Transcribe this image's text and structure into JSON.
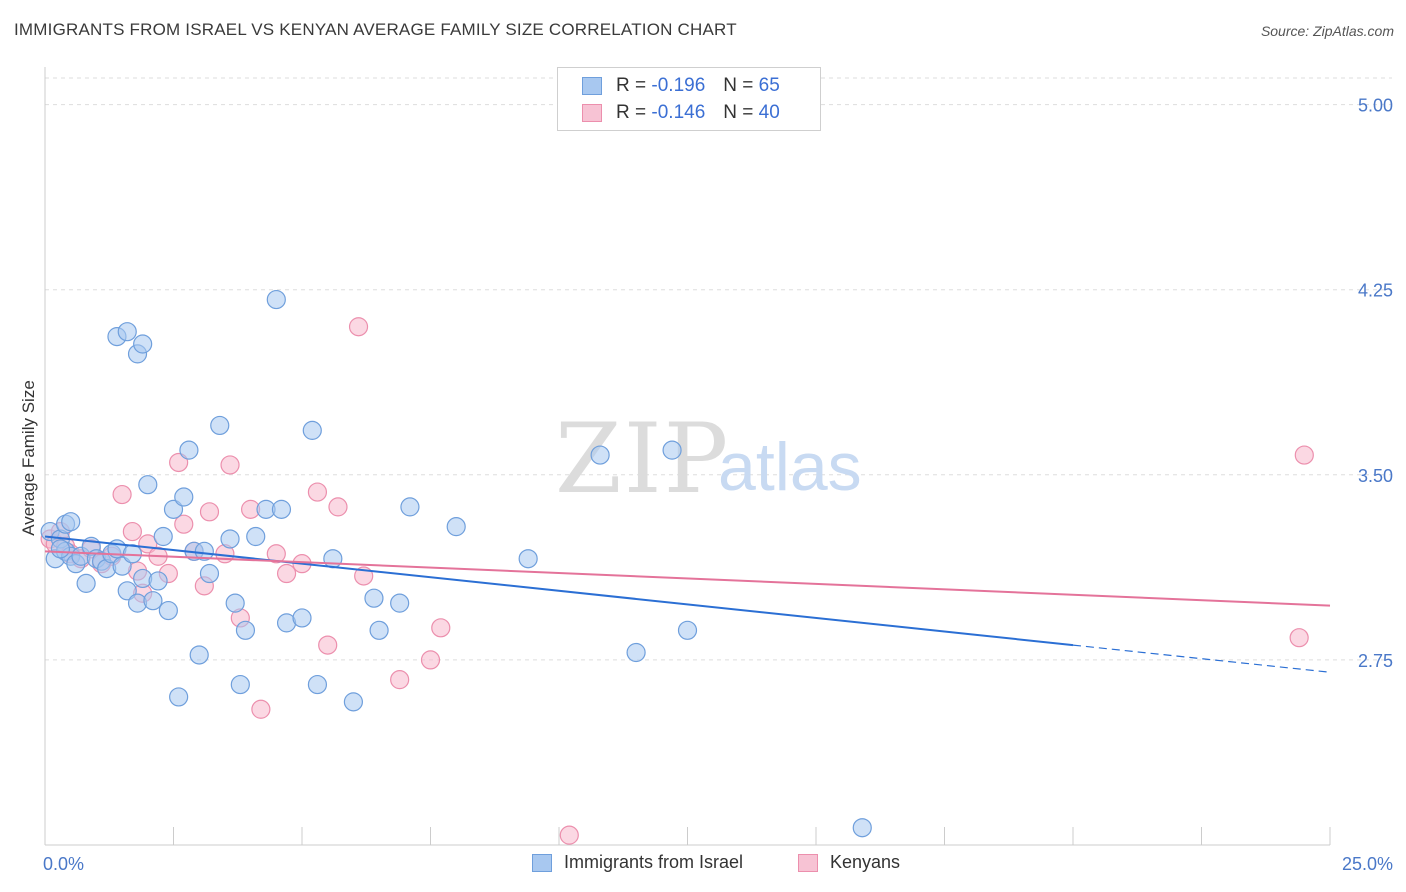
{
  "title": "IMMIGRANTS FROM ISRAEL VS KENYAN AVERAGE FAMILY SIZE CORRELATION CHART",
  "source": "Source: ZipAtlas.com",
  "watermark": {
    "zip": "ZIP",
    "atlas": "atlas"
  },
  "legend": {
    "rows": [
      {
        "r_label": "R =",
        "r_value": "-0.196",
        "n_label": "N =",
        "n_value": "65"
      },
      {
        "r_label": "R =",
        "r_value": "-0.146",
        "n_label": "N =",
        "n_value": "40"
      }
    ]
  },
  "bottom_legend": {
    "series1": "Immigrants from Israel",
    "series2": "Kenyans"
  },
  "colors": {
    "israel_fill": "#a8c8f0",
    "israel_stroke": "#6f9fdc",
    "israel_line": "#2b6fd4",
    "kenya_fill": "#f7b8cc",
    "kenya_stroke": "#ec8fad",
    "kenya_line": "#e4739a",
    "tick_text": "#4a78c8",
    "grid": "#dddddd"
  },
  "chart_data": {
    "type": "scatter",
    "title": "IMMIGRANTS FROM ISRAEL VS KENYAN AVERAGE FAMILY SIZE CORRELATION CHART",
    "xlabel": "",
    "ylabel": "Average Family Size",
    "xlim": [
      0,
      25
    ],
    "ylim": [
      2.0,
      5.12
    ],
    "x_tick_labels": [
      "0.0%",
      "25.0%"
    ],
    "y_ticks": [
      2.75,
      3.5,
      4.25,
      5.0
    ],
    "y_tick_labels": [
      "2.75",
      "3.50",
      "4.25",
      "5.00"
    ],
    "grid": true,
    "series": [
      {
        "name": "Immigrants from Israel",
        "r": -0.196,
        "n": 65,
        "trend": {
          "x0": 0,
          "y0": 3.25,
          "x1": 20,
          "y1": 2.81,
          "dashed_to_x": 25,
          "dashed_to_y": 2.7
        },
        "points": [
          [
            0.1,
            3.27
          ],
          [
            0.2,
            3.16
          ],
          [
            0.3,
            3.24
          ],
          [
            0.4,
            3.3
          ],
          [
            0.4,
            3.19
          ],
          [
            0.5,
            3.17
          ],
          [
            0.6,
            3.14
          ],
          [
            0.7,
            3.17
          ],
          [
            0.8,
            3.06
          ],
          [
            0.9,
            3.21
          ],
          [
            1.0,
            3.16
          ],
          [
            1.1,
            3.15
          ],
          [
            1.2,
            3.12
          ],
          [
            1.3,
            3.18
          ],
          [
            1.4,
            3.2
          ],
          [
            1.5,
            3.13
          ],
          [
            1.6,
            3.03
          ],
          [
            1.7,
            3.18
          ],
          [
            1.8,
            2.98
          ],
          [
            1.9,
            3.08
          ],
          [
            2.0,
            3.46
          ],
          [
            2.1,
            2.99
          ],
          [
            2.2,
            3.07
          ],
          [
            2.3,
            3.25
          ],
          [
            2.4,
            2.95
          ],
          [
            2.5,
            3.36
          ],
          [
            2.7,
            3.41
          ],
          [
            2.8,
            3.6
          ],
          [
            2.9,
            3.19
          ],
          [
            3.1,
            3.19
          ],
          [
            3.2,
            3.1
          ],
          [
            3.4,
            3.7
          ],
          [
            3.6,
            3.24
          ],
          [
            3.7,
            2.98
          ],
          [
            3.8,
            2.65
          ],
          [
            3.9,
            2.87
          ],
          [
            4.1,
            3.25
          ],
          [
            4.3,
            3.36
          ],
          [
            4.5,
            4.21
          ],
          [
            4.6,
            3.36
          ],
          [
            4.7,
            2.9
          ],
          [
            5.0,
            2.92
          ],
          [
            5.2,
            3.68
          ],
          [
            5.3,
            2.65
          ],
          [
            5.6,
            3.16
          ],
          [
            6.0,
            2.58
          ],
          [
            6.4,
            3.0
          ],
          [
            6.5,
            2.87
          ],
          [
            6.9,
            2.98
          ],
          [
            7.1,
            3.37
          ],
          [
            8.0,
            3.29
          ],
          [
            9.4,
            3.16
          ],
          [
            11.5,
            2.78
          ],
          [
            12.2,
            3.6
          ],
          [
            10.8,
            3.58
          ],
          [
            12.5,
            2.87
          ],
          [
            15.9,
            2.07
          ],
          [
            2.6,
            2.6
          ],
          [
            3.0,
            2.77
          ],
          [
            1.4,
            4.06
          ],
          [
            1.6,
            4.08
          ],
          [
            1.8,
            3.99
          ],
          [
            1.9,
            4.03
          ],
          [
            0.3,
            3.2
          ],
          [
            0.5,
            3.31
          ]
        ]
      },
      {
        "name": "Kenyans",
        "r": -0.146,
        "n": 40,
        "trend": {
          "x0": 0,
          "y0": 3.19,
          "x1": 25,
          "y1": 2.97
        },
        "points": [
          [
            0.1,
            3.24
          ],
          [
            0.2,
            3.22
          ],
          [
            0.3,
            3.27
          ],
          [
            0.4,
            3.21
          ],
          [
            0.5,
            3.18
          ],
          [
            0.7,
            3.16
          ],
          [
            0.9,
            3.2
          ],
          [
            1.1,
            3.14
          ],
          [
            1.3,
            3.17
          ],
          [
            1.5,
            3.42
          ],
          [
            1.7,
            3.27
          ],
          [
            1.8,
            3.11
          ],
          [
            1.9,
            3.02
          ],
          [
            2.0,
            3.22
          ],
          [
            2.2,
            3.17
          ],
          [
            2.4,
            3.1
          ],
          [
            2.6,
            3.55
          ],
          [
            2.7,
            3.3
          ],
          [
            2.9,
            3.19
          ],
          [
            3.1,
            3.05
          ],
          [
            3.2,
            3.35
          ],
          [
            3.5,
            3.18
          ],
          [
            3.6,
            3.54
          ],
          [
            3.8,
            2.92
          ],
          [
            4.0,
            3.36
          ],
          [
            4.2,
            2.55
          ],
          [
            4.5,
            3.18
          ],
          [
            4.7,
            3.1
          ],
          [
            5.0,
            3.14
          ],
          [
            5.3,
            3.43
          ],
          [
            5.5,
            2.81
          ],
          [
            5.7,
            3.37
          ],
          [
            6.1,
            4.1
          ],
          [
            6.2,
            3.09
          ],
          [
            6.9,
            2.67
          ],
          [
            7.5,
            2.75
          ],
          [
            7.7,
            2.88
          ],
          [
            10.2,
            2.04
          ],
          [
            24.5,
            3.58
          ],
          [
            24.4,
            2.84
          ]
        ]
      }
    ]
  }
}
